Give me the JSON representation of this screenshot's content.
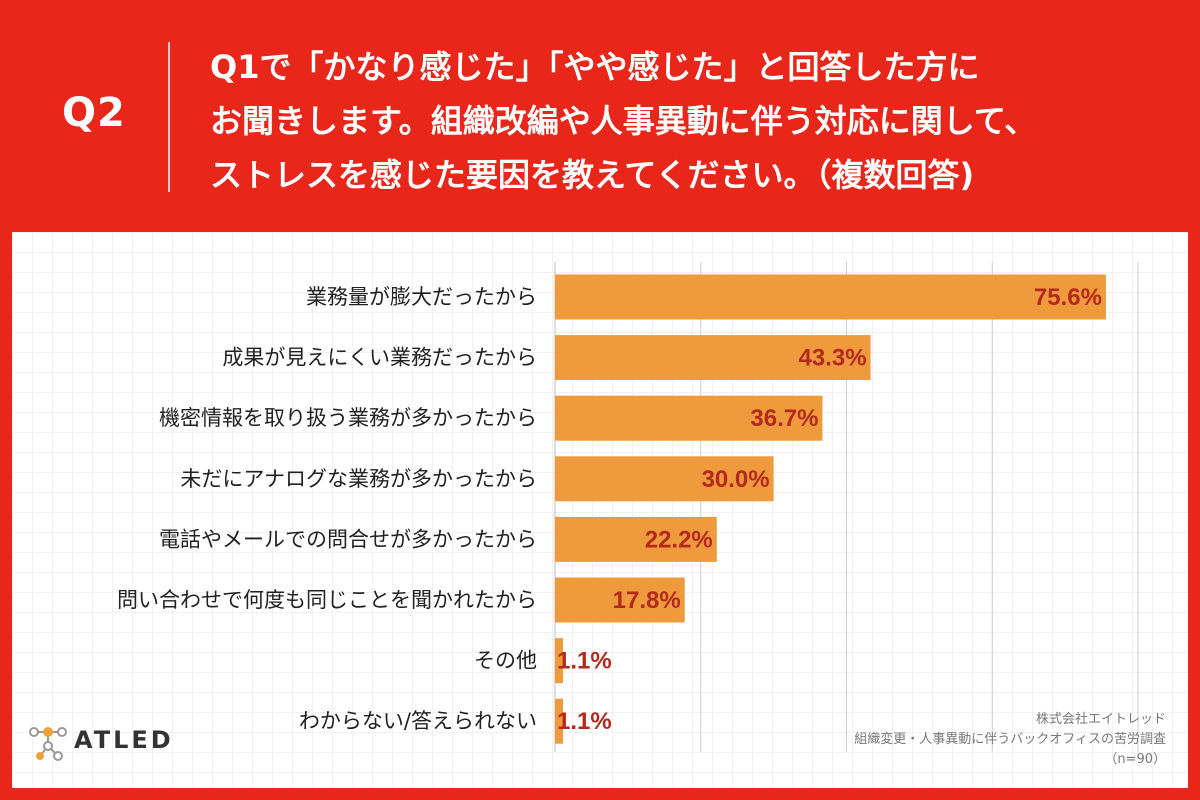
{
  "header": {
    "q_label": "Q2",
    "question_lines": [
      "Q1で「かなり感じた」「やや感じた」と回答した方に",
      "お聞きします。組織改編や人事異動に伴う対応に関して、",
      "ストレスを感じた要因を教えてください。（複数回答)"
    ]
  },
  "colors": {
    "background": "#e8261a",
    "bar": "#ef9a3c",
    "value_label": "#b5281c",
    "gridline": "#cfcfcf",
    "logo_orange": "#f0a23a"
  },
  "chart_data": {
    "type": "bar",
    "orientation": "horizontal",
    "categories": [
      "業務量が膨大だったから",
      "成果が見えにくい業務だったから",
      "機密情報を取り扱う業務が多かったから",
      "未だにアナログな業務が多かったから",
      "電話やメールでの問合せが多かったから",
      "問い合わせで何度も同じことを聞かれたから",
      "その他",
      "わからない/答えられない"
    ],
    "values": [
      75.6,
      43.3,
      36.7,
      30.0,
      22.2,
      17.8,
      1.1,
      1.1
    ],
    "value_labels": [
      "75.6%",
      "43.3%",
      "36.7%",
      "30.0%",
      "22.2%",
      "17.8%",
      "1.1%",
      "1.1%"
    ],
    "xlim": [
      0,
      80
    ],
    "gridlines_x": [
      0,
      20,
      40,
      60,
      80
    ],
    "grid": true
  },
  "logo": {
    "text": "ATLED"
  },
  "source": {
    "company": "株式会社エイトレッド",
    "survey": "組織変更・人事異動に伴うバックオフィスの苦労調査",
    "sample": "（n=90）"
  }
}
